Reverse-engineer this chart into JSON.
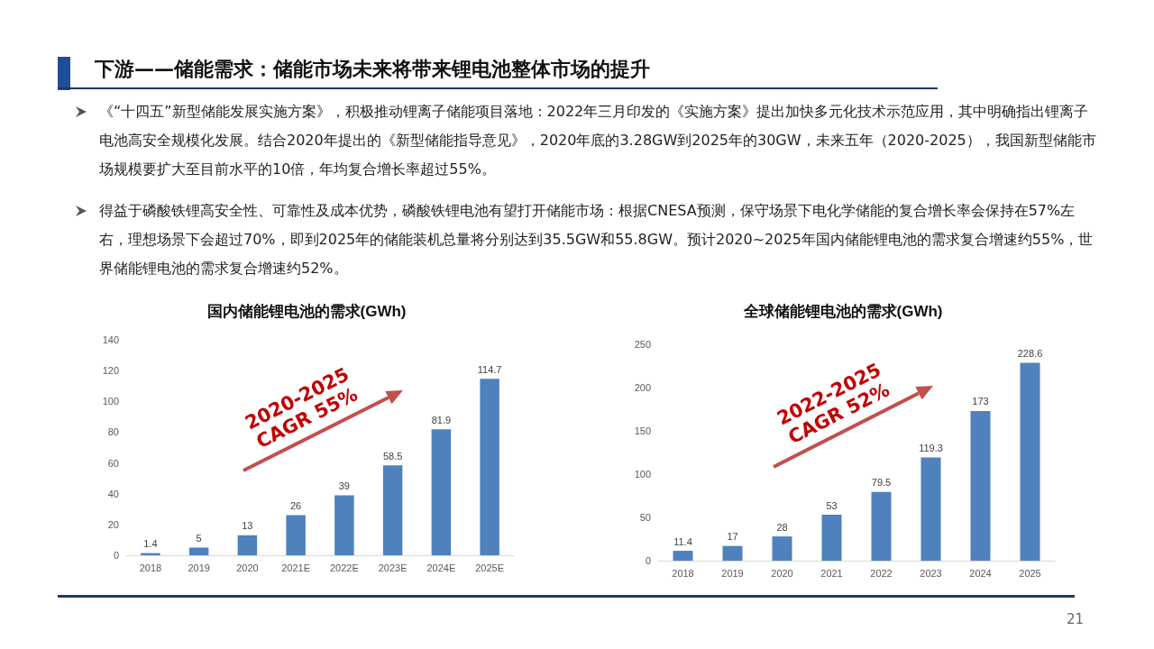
{
  "chart_data": [
    {
      "type": "bar",
      "title": "国内储能锂电池的需求(GWh)",
      "categories": [
        "2018",
        "2019",
        "2020",
        "2021E",
        "2022E",
        "2023E",
        "2024E",
        "2025E"
      ],
      "values": [
        1.4,
        5,
        13,
        26,
        39,
        58.5,
        81.9,
        114.7
      ],
      "color": "#4f81bd",
      "ylim": [
        0,
        140
      ],
      "yticks": [
        0,
        20,
        40,
        60,
        80,
        100,
        120,
        140
      ],
      "grid": false,
      "data_labels": true,
      "annotations": [
        "下游——储能需求：储能市场未来将带来锂电池整体市场的提升",
        "《“十四五”新型储能发展实施方案》，积极推动锂离子储能项目落地：2022年三月印发的《实施方案》提出加快多元化技术示范应用，其中明确指出锂离子电池高安全规模化发展。结合2020年提出的《新型储能指导意见》，2020年底的3.28GW到2025年的30GW，未来五年（2020-2025），我国新型储能市场规模要扩大至目前水平的10倍，年均复合增长率超过55%。",
        "得益于磷酸铁锂高安全性、可靠性及成本优势，磷酸铁锂电池有望打开储能市场：根据CNESA预测，保守场景下电化学储能的复合增长率会保持在57%左右，理想场景下会超过70%，即到2025年的储能装机总量将分别达到35.5GW和55.8GW。预计2020~2025年国内储能锂电池的需求复合增速约55%，世界储能锂电池的需求复合增速约52%。",
        "2020-2025\nCAGR 55%"
      ]
    },
    {
      "type": "bar",
      "title": "全球储能锂电池的需求(GWh)",
      "categories": [
        "2018",
        "2019",
        "2020",
        "2021",
        "2022",
        "2023",
        "2024",
        "2025"
      ],
      "values": [
        11.4,
        17,
        28,
        53,
        79.5,
        119.3,
        173,
        228.6
      ],
      "color": "#4f81bd",
      "ylim": [
        0,
        250
      ],
      "yticks": [
        0,
        50,
        100,
        150,
        200,
        250
      ],
      "grid": false,
      "data_labels": true,
      "annotations": [
        "2022-2025\nCAGR 52%",
        "21"
      ]
    }
  ]
}
